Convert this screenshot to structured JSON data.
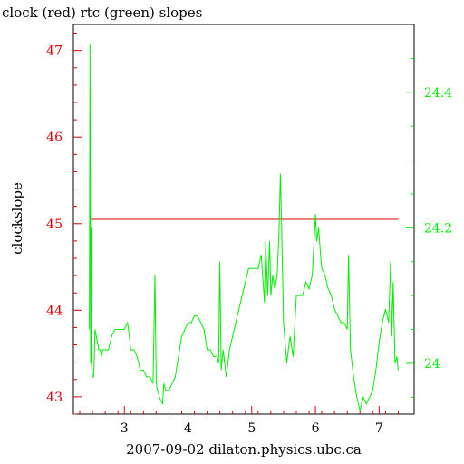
{
  "chart_data": {
    "type": "line",
    "title": "clock (red) rtc (green) slopes",
    "xlabel": "2007-09-02 dilaton.physics.ubc.ca",
    "ylabel": "clockslope",
    "xlim": [
      2.2,
      7.55
    ],
    "ylim_left": [
      42.8,
      47.3
    ],
    "ylim_right": [
      23.925,
      24.5
    ],
    "x_ticks": [
      "3",
      "4",
      "5",
      "6",
      "7"
    ],
    "y_left_ticks": [
      "43",
      "44",
      "45",
      "46",
      "47"
    ],
    "y_right_ticks": [
      "24",
      "24.2",
      "24.4"
    ],
    "grid": false,
    "colors": {
      "clock": "#e00000",
      "rtc": "#00ee00",
      "axis": "#000000"
    },
    "series": [
      {
        "axis": "left",
        "x": [
          2.45,
          7.3
        ],
        "y": [
          45.05,
          45.05
        ]
      },
      {
        "axis": "right",
        "x": [
          2.45,
          2.46,
          2.47,
          2.48,
          2.485,
          2.49,
          2.5,
          2.52,
          2.54,
          2.56,
          2.58,
          2.6,
          2.62,
          2.64,
          2.66,
          2.7,
          2.75,
          2.8,
          2.85,
          2.9,
          2.95,
          3.0,
          3.05,
          3.08,
          3.1,
          3.15,
          3.2,
          3.25,
          3.3,
          3.35,
          3.4,
          3.45,
          3.48,
          3.5,
          3.52,
          3.55,
          3.6,
          3.62,
          3.65,
          3.7,
          3.8,
          3.85,
          3.9,
          3.95,
          4.0,
          4.05,
          4.1,
          4.15,
          4.2,
          4.25,
          4.3,
          4.35,
          4.4,
          4.45,
          4.48,
          4.5,
          4.52,
          4.55,
          4.6,
          4.65,
          4.7,
          4.75,
          4.8,
          4.85,
          4.9,
          4.95,
          5.0,
          5.05,
          5.1,
          5.15,
          5.2,
          5.22,
          5.25,
          5.28,
          5.3,
          5.33,
          5.36,
          5.4,
          5.43,
          5.45,
          5.47,
          5.5,
          5.55,
          5.6,
          5.65,
          5.7,
          5.75,
          5.8,
          5.85,
          5.9,
          5.95,
          6.0,
          6.02,
          6.05,
          6.08,
          6.1,
          6.15,
          6.2,
          6.25,
          6.3,
          6.35,
          6.4,
          6.45,
          6.5,
          6.52,
          6.55,
          6.6,
          6.65,
          6.7,
          6.75,
          6.8,
          6.85,
          6.9,
          6.95,
          7.0,
          7.05,
          7.1,
          7.15,
          7.18,
          7.2,
          7.22,
          7.25,
          7.28,
          7.3
        ],
        "y": [
          24.05,
          24.47,
          24.0,
          24.2,
          24.0,
          23.99,
          23.98,
          23.98,
          24.05,
          24.04,
          24.03,
          24.02,
          24.02,
          24.01,
          24.02,
          24.02,
          24.02,
          24.04,
          24.05,
          24.05,
          24.05,
          24.05,
          24.06,
          24.04,
          24.02,
          24.02,
          24.01,
          23.99,
          23.99,
          23.98,
          23.98,
          23.97,
          24.13,
          23.97,
          23.96,
          23.95,
          23.94,
          23.97,
          23.96,
          23.96,
          23.98,
          24.01,
          24.04,
          24.05,
          24.06,
          24.06,
          24.07,
          24.07,
          24.06,
          24.05,
          24.02,
          24.02,
          24.01,
          24.01,
          24.0,
          24.15,
          23.99,
          24.02,
          23.98,
          24.02,
          24.04,
          24.06,
          24.08,
          24.1,
          24.12,
          24.14,
          24.14,
          24.14,
          24.14,
          24.16,
          24.09,
          24.18,
          24.1,
          24.18,
          24.1,
          24.13,
          24.11,
          24.13,
          24.2,
          24.28,
          24.2,
          24.06,
          24.0,
          24.04,
          24.01,
          24.1,
          24.1,
          24.1,
          24.12,
          24.11,
          24.13,
          24.22,
          24.18,
          24.2,
          24.16,
          24.14,
          24.13,
          24.11,
          24.1,
          24.08,
          24.07,
          24.06,
          24.06,
          24.05,
          24.16,
          24.02,
          23.98,
          23.95,
          23.93,
          23.95,
          23.94,
          23.95,
          23.96,
          23.99,
          24.03,
          24.06,
          24.08,
          24.06,
          24.15,
          24.04,
          24.12,
          24.0,
          24.01,
          23.99
        ]
      }
    ]
  }
}
